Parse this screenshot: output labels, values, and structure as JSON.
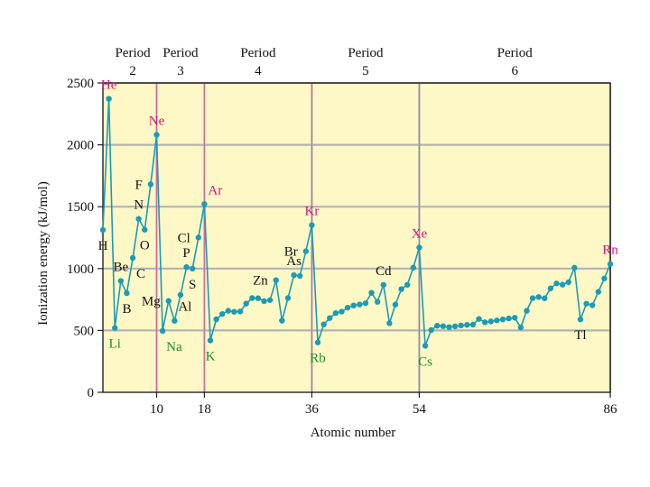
{
  "chart_data": {
    "type": "line",
    "title": "",
    "xlabel": "Atomic number",
    "ylabel": "Ionization energy (kJ/mol)",
    "xlim": [
      1,
      86
    ],
    "ylim": [
      0,
      2500
    ],
    "yticks": [
      0,
      500,
      1000,
      1500,
      2000,
      2500
    ],
    "xticks": [
      10,
      18,
      36,
      54,
      86
    ],
    "grid": true,
    "legend": "none",
    "colors": {
      "plot_background": "#fdf8c6",
      "line": "#1c9bb5",
      "noble_gas_label": "#d3167a",
      "alkali_metal_label": "#1c8c2e",
      "other_label": "#111111",
      "grid": "#b3b3b3",
      "period_divider": "#e03a8f"
    },
    "periods": [
      {
        "label": "Period",
        "number": "2",
        "from": 2,
        "to": 10
      },
      {
        "label": "Period",
        "number": "3",
        "from": 10,
        "to": 18
      },
      {
        "label": "Period",
        "number": "4",
        "from": 18,
        "to": 36
      },
      {
        "label": "Period",
        "number": "5",
        "from": 36,
        "to": 54
      },
      {
        "label": "Period",
        "number": "6",
        "from": 54,
        "to": 86
      }
    ],
    "period_dividers": [
      10,
      18,
      36,
      54
    ],
    "series": [
      {
        "x": [
          1,
          2,
          3,
          4,
          5,
          6,
          7,
          8,
          9,
          10,
          11,
          12,
          13,
          14,
          15,
          16,
          17,
          18,
          19,
          20,
          21,
          22,
          23,
          24,
          25,
          26,
          27,
          28,
          29,
          30,
          31,
          32,
          33,
          34,
          35,
          36,
          37,
          38,
          39,
          40,
          41,
          42,
          43,
          44,
          45,
          46,
          47,
          48,
          49,
          50,
          51,
          52,
          53,
          54,
          55,
          56,
          57,
          58,
          59,
          60,
          61,
          62,
          63,
          64,
          65,
          66,
          67,
          68,
          69,
          70,
          71,
          72,
          73,
          74,
          75,
          76,
          77,
          78,
          79,
          80,
          81,
          82,
          83,
          84,
          85,
          86
        ],
        "values": [
          1312,
          2372,
          520,
          900,
          801,
          1086,
          1402,
          1314,
          1681,
          2081,
          496,
          738,
          578,
          787,
          1012,
          1000,
          1251,
          1521,
          419,
          590,
          633,
          659,
          651,
          653,
          717,
          762,
          760,
          737,
          745,
          906,
          579,
          762,
          947,
          941,
          1140,
          1351,
          403,
          549,
          600,
          640,
          652,
          684,
          702,
          710,
          720,
          804,
          731,
          868,
          558,
          709,
          834,
          869,
          1008,
          1170,
          376,
          503,
          538,
          534,
          527,
          533,
          540,
          545,
          547,
          593,
          566,
          573,
          581,
          589,
          597,
          603,
          524,
          659,
          761,
          770,
          760,
          840,
          880,
          870,
          890,
          1007,
          589,
          716,
          703,
          812,
          920,
          1037
        ]
      }
    ],
    "element_labels": [
      {
        "symbol": "H",
        "x": 1,
        "y": 1312,
        "group": "other",
        "pos": "below"
      },
      {
        "symbol": "He",
        "x": 2,
        "y": 2372,
        "group": "noble",
        "pos": "above"
      },
      {
        "symbol": "Li",
        "x": 3,
        "y": 520,
        "group": "alkali",
        "pos": "below"
      },
      {
        "symbol": "Be",
        "x": 4,
        "y": 900,
        "group": "other",
        "pos": "above"
      },
      {
        "symbol": "B",
        "x": 5,
        "y": 801,
        "group": "other",
        "pos": "below"
      },
      {
        "symbol": "C",
        "x": 6,
        "y": 1086,
        "group": "other",
        "pos": "belowright"
      },
      {
        "symbol": "N",
        "x": 7,
        "y": 1402,
        "group": "other",
        "pos": "above"
      },
      {
        "symbol": "O",
        "x": 8,
        "y": 1314,
        "group": "other",
        "pos": "below"
      },
      {
        "symbol": "F",
        "x": 9,
        "y": 1681,
        "group": "other",
        "pos": "left"
      },
      {
        "symbol": "Ne",
        "x": 10,
        "y": 2081,
        "group": "noble",
        "pos": "above"
      },
      {
        "symbol": "Na",
        "x": 11,
        "y": 496,
        "group": "alkali",
        "pos": "belowright"
      },
      {
        "symbol": "Mg",
        "x": 12,
        "y": 738,
        "group": "other",
        "pos": "left"
      },
      {
        "symbol": "Al",
        "x": 13,
        "y": 578,
        "group": "other",
        "pos": "aboveright"
      },
      {
        "symbol": "P",
        "x": 15,
        "y": 1012,
        "group": "other",
        "pos": "above"
      },
      {
        "symbol": "S",
        "x": 16,
        "y": 1000,
        "group": "other",
        "pos": "below"
      },
      {
        "symbol": "Cl",
        "x": 17,
        "y": 1251,
        "group": "other",
        "pos": "left"
      },
      {
        "symbol": "Ar",
        "x": 18,
        "y": 1521,
        "group": "noble",
        "pos": "aboveright"
      },
      {
        "symbol": "K",
        "x": 19,
        "y": 419,
        "group": "alkali",
        "pos": "below"
      },
      {
        "symbol": "Zn",
        "x": 30,
        "y": 906,
        "group": "other",
        "pos": "left"
      },
      {
        "symbol": "As",
        "x": 33,
        "y": 947,
        "group": "other",
        "pos": "above"
      },
      {
        "symbol": "Br",
        "x": 35,
        "y": 1140,
        "group": "other",
        "pos": "left"
      },
      {
        "symbol": "Kr",
        "x": 36,
        "y": 1351,
        "group": "noble",
        "pos": "above"
      },
      {
        "symbol": "Rb",
        "x": 37,
        "y": 403,
        "group": "alkali",
        "pos": "below"
      },
      {
        "symbol": "Cd",
        "x": 48,
        "y": 868,
        "group": "other",
        "pos": "above"
      },
      {
        "symbol": "Xe",
        "x": 54,
        "y": 1170,
        "group": "noble",
        "pos": "above"
      },
      {
        "symbol": "Cs",
        "x": 55,
        "y": 376,
        "group": "alkali",
        "pos": "below"
      },
      {
        "symbol": "Tl",
        "x": 81,
        "y": 589,
        "group": "other",
        "pos": "below"
      },
      {
        "symbol": "Rn",
        "x": 86,
        "y": 1037,
        "group": "noble",
        "pos": "above"
      }
    ]
  }
}
